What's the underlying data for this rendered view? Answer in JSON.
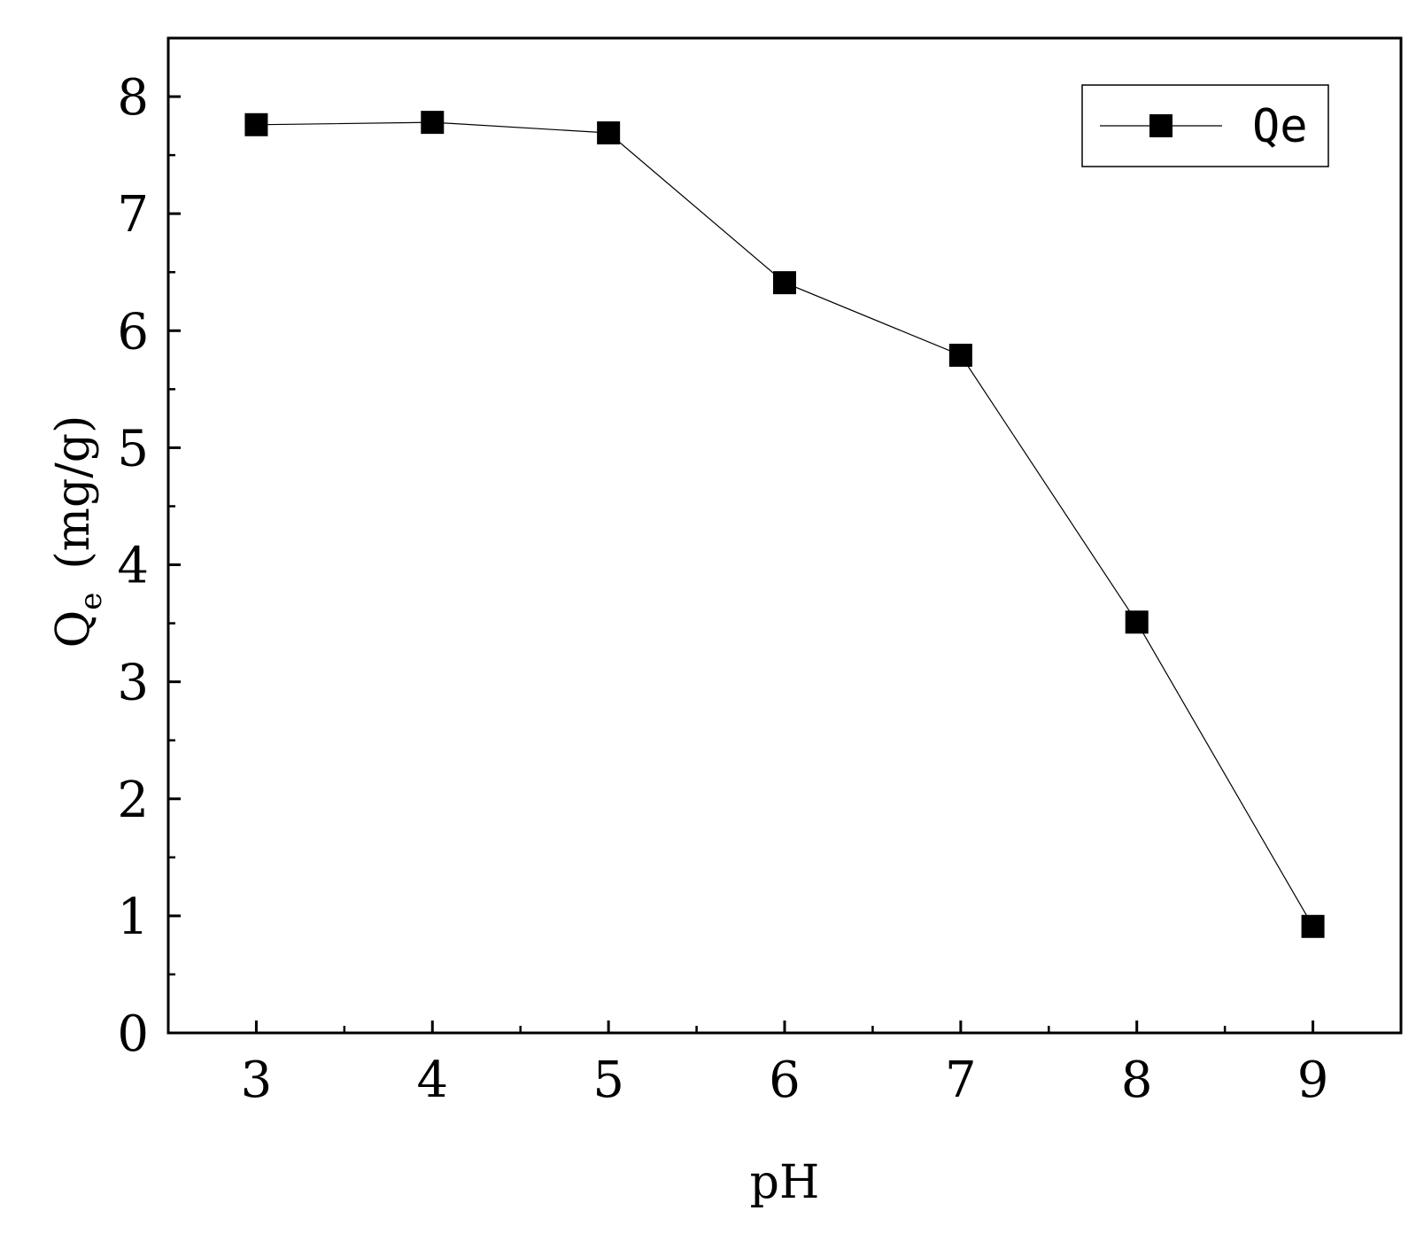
{
  "chart_data": {
    "type": "line",
    "x": [
      3,
      4,
      5,
      6,
      7,
      8,
      9
    ],
    "series": [
      {
        "name": "Qe",
        "values": [
          7.76,
          7.78,
          7.69,
          6.41,
          5.79,
          3.51,
          0.91
        ],
        "color": "#000000",
        "marker": "square"
      }
    ],
    "xlabel": "pH",
    "ylabel": {
      "main": "Q",
      "sub": "e",
      "unit": "(mg/g)"
    },
    "xlim": [
      2.5,
      9.5
    ],
    "ylim": [
      0,
      8.5
    ],
    "xticks": [
      3,
      4,
      5,
      6,
      7,
      8,
      9
    ],
    "yticks": [
      0,
      1,
      2,
      3,
      4,
      5,
      6,
      7,
      8
    ],
    "legend": {
      "position": "top-right",
      "labels": [
        "Qe"
      ]
    },
    "grid": false
  }
}
